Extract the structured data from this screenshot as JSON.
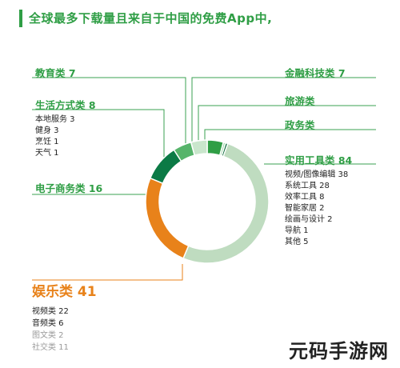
{
  "title": "全球最多下载量且来自于中国的免费App中,",
  "watermark": "元码手游网",
  "chart_data": {
    "type": "pie",
    "hole": true,
    "slices": [
      {
        "label": "金融科技类",
        "value": 7,
        "color": "#2f9e45"
      },
      {
        "label": "旅游类",
        "value": 1,
        "color": "#a6d8b0"
      },
      {
        "label": "政务类",
        "value": 1,
        "color": "#0b6b3a"
      },
      {
        "label": "实用工具类",
        "value": 84,
        "color": "#bfdcc0"
      },
      {
        "label": "娱乐类",
        "value": 41,
        "color": "#e8821a"
      },
      {
        "label": "电子商务类",
        "value": 16,
        "color": "#0b7a45"
      },
      {
        "label": "生活方式类",
        "value": 8,
        "color": "#56b46a"
      },
      {
        "label": "教育类",
        "value": 7,
        "color": "#c9e6cc"
      }
    ],
    "labels": {
      "edu": "教育类 7",
      "life": "生活方式类 8",
      "ecom": "电子商务类 16",
      "ent": "娱乐类 41",
      "fin": "金融科技类 7",
      "travel": "旅游类",
      "gov": "政务类",
      "tools": "实用工具类 84"
    },
    "sub": {
      "life": [
        "本地服务 3",
        "健身 3",
        "烹饪 1",
        "天气 1"
      ],
      "tools": [
        "视频/图像编辑 38",
        "系统工具 28",
        "效率工具 8",
        "智能家居 2",
        "绘画与设计 2",
        "导航 1",
        "其他 5"
      ],
      "ent": [
        "视频类 22",
        "音频类 6",
        "图文类 2",
        "社交类 11"
      ]
    }
  }
}
